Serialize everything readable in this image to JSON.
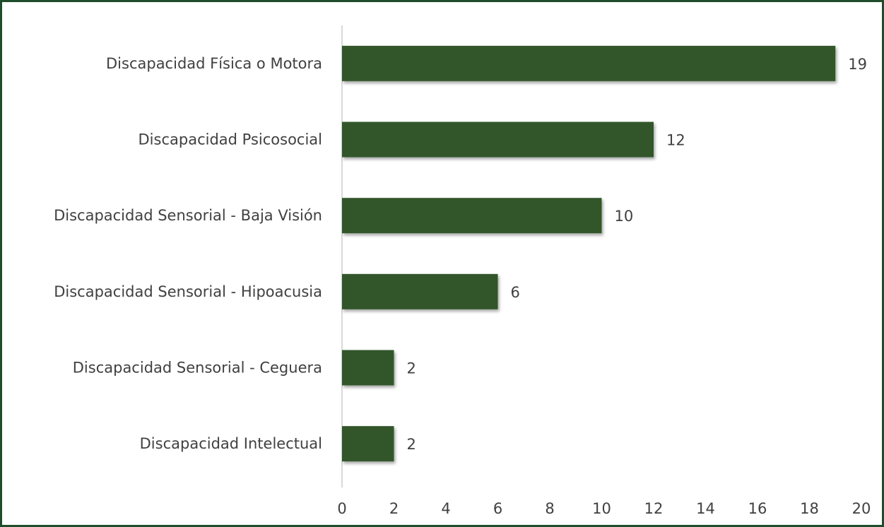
{
  "chart_data": {
    "type": "bar",
    "orientation": "horizontal",
    "categories": [
      "Discapacidad Física o Motora",
      "Discapacidad Psicosocial",
      "Discapacidad Sensorial - Baja Visión",
      "Discapacidad Sensorial - Hipoacusia",
      "Discapacidad Sensorial - Ceguera",
      "Discapacidad Intelectual"
    ],
    "values": [
      19,
      12,
      10,
      6,
      2,
      2
    ],
    "color": "#33562a",
    "xlim": [
      0,
      20
    ],
    "xticks": [
      0,
      2,
      4,
      6,
      8,
      10,
      12,
      14,
      16,
      18,
      20
    ],
    "grid": false,
    "data_labels": true
  }
}
